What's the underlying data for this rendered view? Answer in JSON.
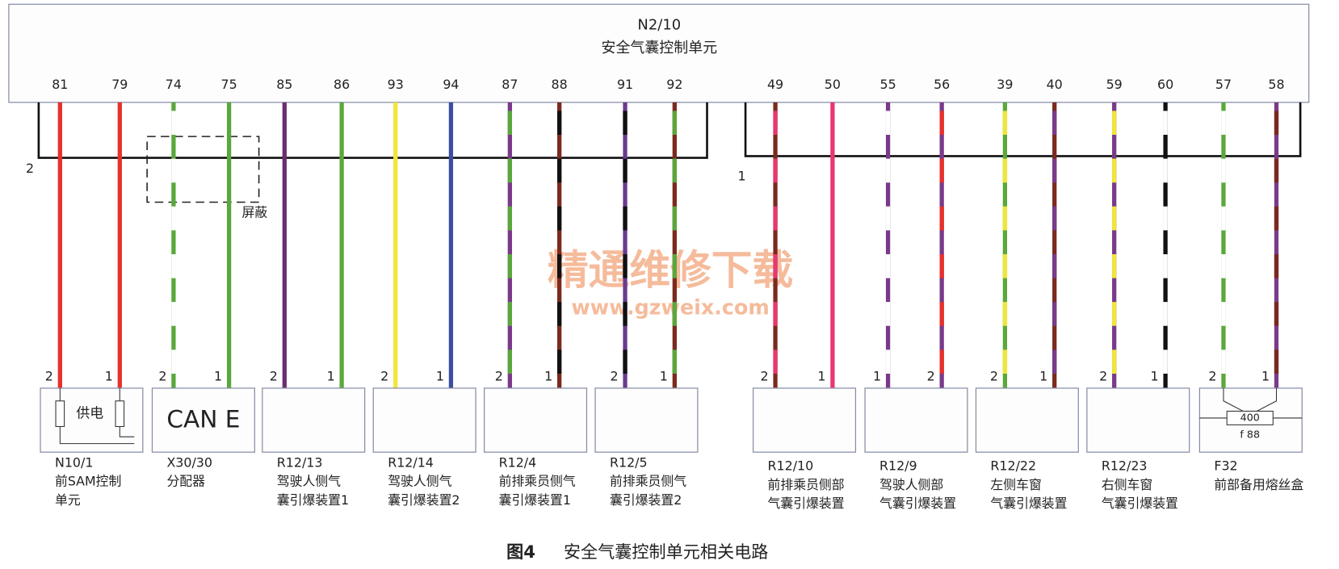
{
  "header": {
    "id": "N2/10",
    "name": "安全气囊控制单元"
  },
  "pins": [
    "81",
    "79",
    "74",
    "75",
    "85",
    "86",
    "93",
    "94",
    "87",
    "88",
    "91",
    "92",
    "49",
    "50",
    "55",
    "56",
    "39",
    "40",
    "59",
    "60",
    "57",
    "58"
  ],
  "ground_labels": [
    "2",
    "1"
  ],
  "shield_label": "屏蔽",
  "watermark": {
    "name": "精通维修下载",
    "url": "www.gzweix.com"
  },
  "components": [
    {
      "pins": [
        "2",
        "1"
      ],
      "inner": "供电",
      "id": "N10/1",
      "description": [
        "前SAM控制",
        "单元"
      ]
    },
    {
      "pins": [
        "2",
        "1"
      ],
      "inner": "CAN E",
      "id": "X30/30",
      "description": [
        "分配器"
      ]
    },
    {
      "pins": [
        "2",
        "1"
      ],
      "id": "R12/13",
      "description": [
        "驾驶人侧气",
        "囊引爆装置1"
      ]
    },
    {
      "pins": [
        "2",
        "1"
      ],
      "id": "R12/14",
      "description": [
        "驾驶人侧气",
        "囊引爆装置2"
      ]
    },
    {
      "pins": [
        "2",
        "1"
      ],
      "id": "R12/4",
      "description": [
        "前排乘员侧气",
        "囊引爆装置1"
      ]
    },
    {
      "pins": [
        "2",
        "1"
      ],
      "id": "R12/5",
      "description": [
        "前排乘员侧气",
        "囊引爆装置2"
      ]
    },
    {
      "pins": [
        "2",
        "1"
      ],
      "id": "R12/10",
      "description": [
        "前排乘员侧部",
        "气囊引爆装置"
      ]
    },
    {
      "pins": [
        "1",
        "2"
      ],
      "id": "R12/9",
      "description": [
        "驾驶人侧部",
        "气囊引爆装置"
      ]
    },
    {
      "pins": [
        "2",
        "1"
      ],
      "id": "R12/22",
      "description": [
        "左侧车窗",
        "气囊引爆装置"
      ]
    },
    {
      "pins": [
        "2",
        "1"
      ],
      "id": "R12/23",
      "description": [
        "右侧车窗",
        "气囊引爆装置"
      ]
    },
    {
      "pins": [
        "2",
        "1"
      ],
      "inner": "400",
      "inner_sub": "f 88",
      "id": "F32",
      "description": [
        "前部备用熔丝盒"
      ]
    }
  ],
  "caption": {
    "figure": "图4",
    "title": "安全气囊控制单元相关电路"
  }
}
